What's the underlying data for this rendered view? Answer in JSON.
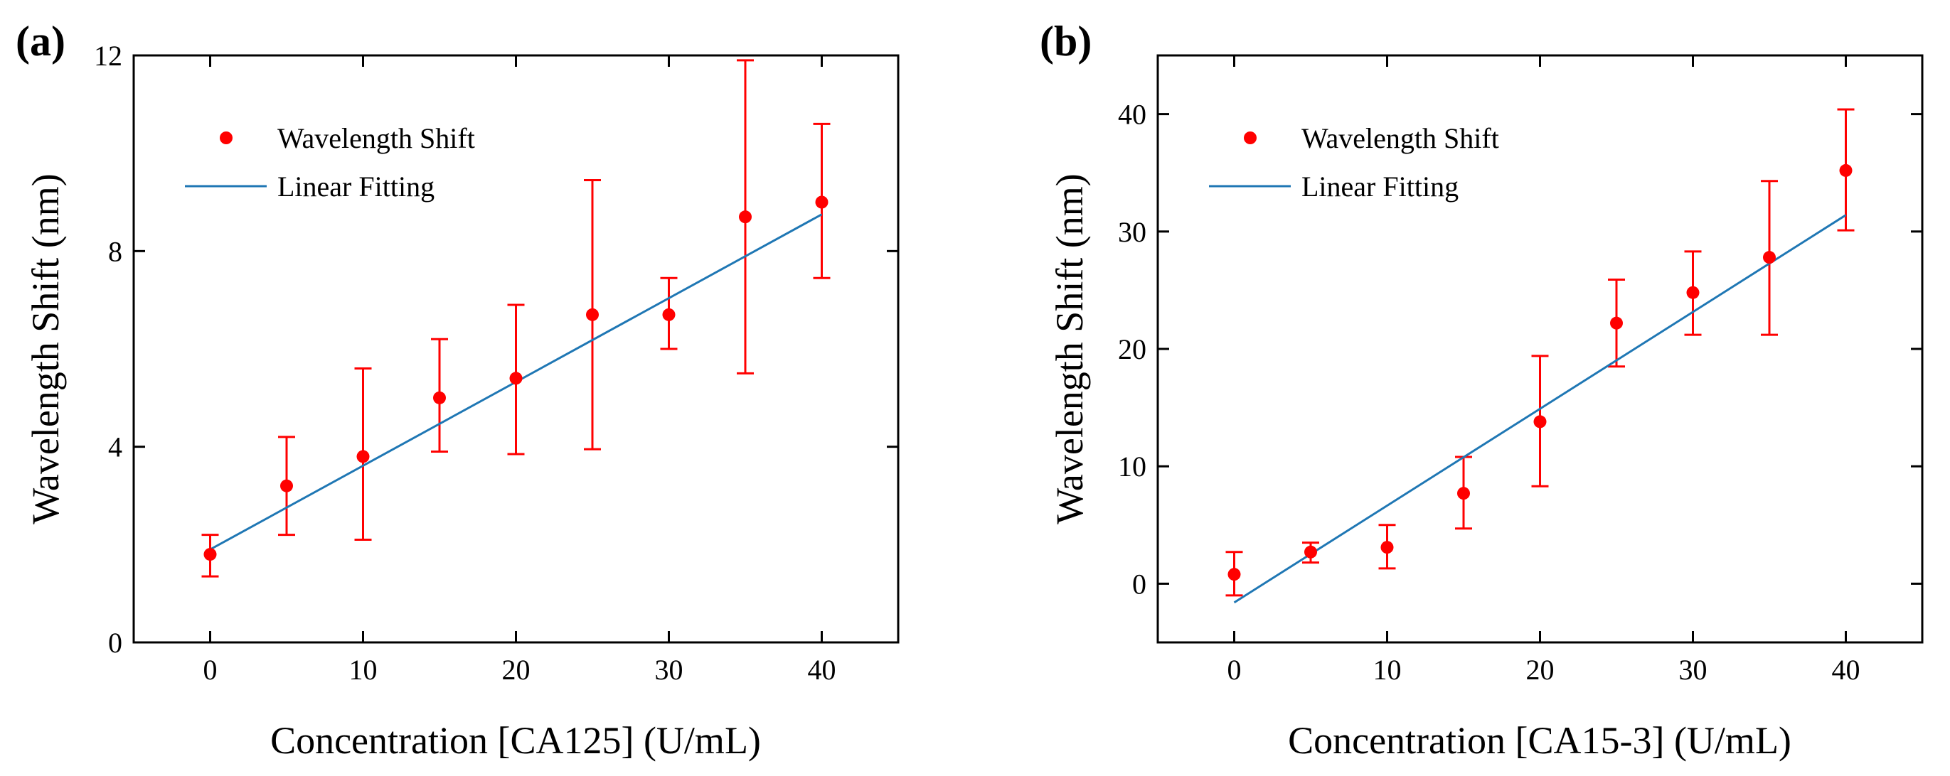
{
  "chart_data": [
    {
      "type": "scatter",
      "panel_label": "(a)",
      "title": "",
      "xlabel": "Concentration [CA125] (U/mL)",
      "ylabel": "Wavelength Shift (nm)",
      "xlim": [
        -5,
        45
      ],
      "ylim": [
        0,
        12
      ],
      "xticks": [
        0,
        10,
        20,
        30,
        40
      ],
      "yticks": [
        0,
        4,
        8,
        12
      ],
      "legend_position": "top-left",
      "series": [
        {
          "name": "Wavelength Shift",
          "kind": "points_with_error_bars",
          "color": "#ff0000",
          "x": [
            0,
            5,
            10,
            15,
            20,
            25,
            30,
            35,
            40
          ],
          "y": [
            1.8,
            3.2,
            3.8,
            5.0,
            5.4,
            6.7,
            6.7,
            8.7,
            9.0
          ],
          "error_low": [
            1.35,
            2.2,
            2.1,
            3.9,
            3.85,
            3.95,
            6.0,
            5.5,
            7.45
          ],
          "error_high": [
            2.2,
            4.2,
            5.6,
            6.2,
            6.9,
            9.45,
            7.45,
            11.9,
            10.6
          ]
        },
        {
          "name": "Linear Fitting",
          "kind": "line",
          "color": "#1f77b4",
          "x": [
            0,
            40
          ],
          "y": [
            1.9,
            8.75
          ]
        }
      ]
    },
    {
      "type": "scatter",
      "panel_label": "(b)",
      "title": "",
      "xlabel": "Concentration [CA15-3] (U/mL)",
      "ylabel": "Wavelength Shift (nm)",
      "xlim": [
        -5,
        45
      ],
      "ylim": [
        -5,
        45
      ],
      "xticks": [
        0,
        10,
        20,
        30,
        40
      ],
      "yticks": [
        0,
        10,
        20,
        30,
        40
      ],
      "legend_position": "top-left",
      "series": [
        {
          "name": "Wavelength Shift",
          "kind": "points_with_error_bars",
          "color": "#ff0000",
          "x": [
            0,
            5,
            10,
            15,
            20,
            25,
            30,
            35,
            40
          ],
          "y": [
            0.8,
            2.7,
            3.1,
            7.7,
            13.8,
            22.2,
            24.8,
            27.8,
            35.2
          ],
          "error_low": [
            -1.0,
            1.8,
            1.3,
            4.7,
            8.3,
            18.5,
            21.2,
            21.2,
            30.1
          ],
          "error_high": [
            2.7,
            3.5,
            5.0,
            10.8,
            19.4,
            25.9,
            28.3,
            34.3,
            40.4
          ]
        },
        {
          "name": "Linear Fitting",
          "kind": "line",
          "color": "#1f77b4",
          "x": [
            0,
            40
          ],
          "y": [
            -1.6,
            31.4
          ]
        }
      ]
    }
  ]
}
